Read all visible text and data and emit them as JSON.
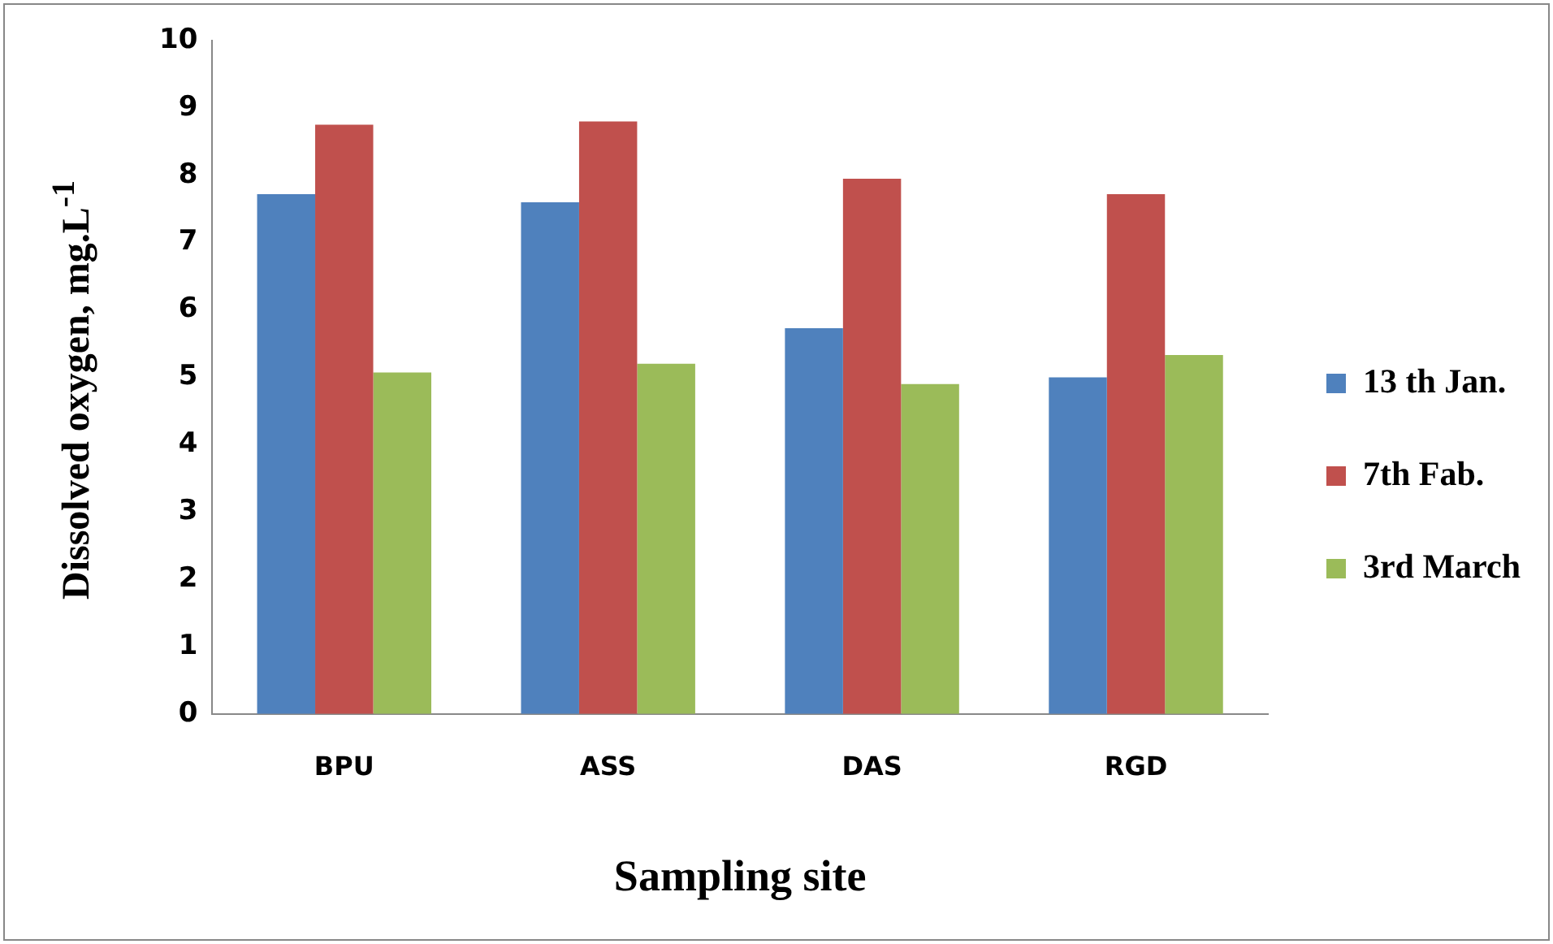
{
  "chart_data": {
    "type": "bar",
    "xlabel": "Sampling site",
    "ylabel": "Dissolved oxygen, mg.L$^{-1}$",
    "categories": [
      "BPU",
      "ASS",
      "DAS",
      "RGD"
    ],
    "series": [
      {
        "name": "13 th Jan.",
        "color": "#4f81bd",
        "values": [
          7.72,
          7.6,
          5.73,
          5.0
        ]
      },
      {
        "name": "7th Fab.",
        "color": "#c0504d",
        "values": [
          8.75,
          8.8,
          7.95,
          7.72
        ]
      },
      {
        "name": "3rd March",
        "color": "#9bbb59",
        "values": [
          5.07,
          5.2,
          4.9,
          5.33
        ]
      }
    ],
    "ylim": [
      0,
      10
    ],
    "yticks": [
      0,
      1,
      2,
      3,
      4,
      5,
      6,
      7,
      8,
      9,
      10
    ],
    "grid": false,
    "legend": "right"
  }
}
